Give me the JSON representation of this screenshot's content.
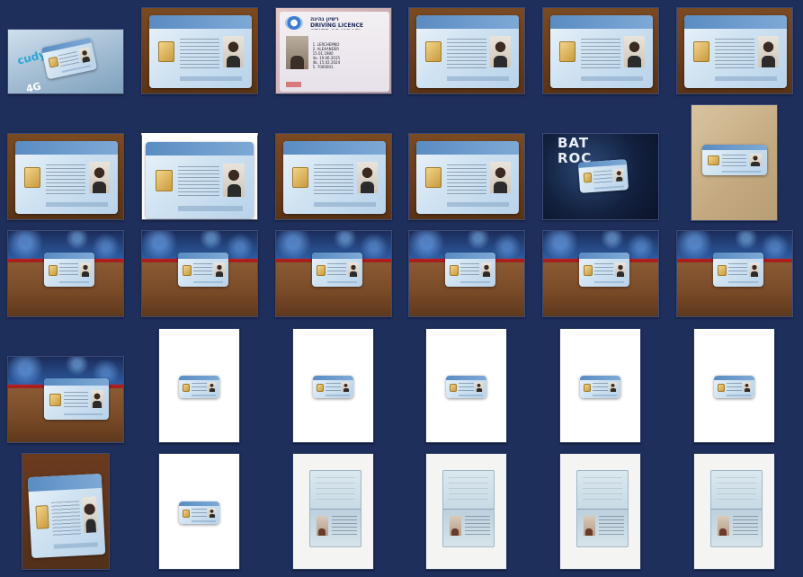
{
  "gallery": {
    "colors": {
      "background": "#1f2f5c",
      "border": "#3c4c78"
    },
    "driving_licence": {
      "title_hebrew": "רשיון נהיגה",
      "title_english": "DRIVING LICENCE",
      "state": "STATE OF ISRAEL",
      "state_hebrew": "מדינת ישראל",
      "label_surname": "1.",
      "surname": "LERCHEMKO",
      "label_given": "2.",
      "given_name": "ALEXANDER",
      "dob": "15.01.1980",
      "issue": "4a. 19.06.2015",
      "expiry": "4b. 15.02.2024",
      "number": "5. 7000001"
    },
    "box_brand": "cudy",
    "box_badge": "4G",
    "graffiti_text": "BAT ROC",
    "rows": [
      [
        {
          "scene": "box",
          "label": "cudy router box with ID card"
        },
        {
          "scene": "card-wood",
          "label": "Israeli ID card on wood"
        },
        {
          "scene": "dl",
          "label": "Israeli driving licence"
        },
        {
          "scene": "card-wood",
          "label": "Israeli ID card on wood"
        },
        {
          "scene": "card-wood",
          "label": "Israeli ID card on wood"
        },
        {
          "scene": "card-wood",
          "label": "Israeli ID card on wood"
        }
      ],
      [
        {
          "scene": "card-wood",
          "label": "Israeli ID card on wood"
        },
        {
          "scene": "card-white-crop",
          "label": "Israeli ID card cropped"
        },
        {
          "scene": "card-wood",
          "label": "Israeli ID card on wood"
        },
        {
          "scene": "card-wood",
          "label": "Israeli ID card on wood"
        },
        {
          "scene": "graffiti",
          "label": "ID card on graffiti background"
        },
        {
          "scene": "card-tan",
          "label": "ID card on tan background"
        }
      ],
      [
        {
          "scene": "rack",
          "label": "ID card on table"
        },
        {
          "scene": "rack",
          "label": "ID card on table"
        },
        {
          "scene": "rack",
          "label": "ID card on table"
        },
        {
          "scene": "rack",
          "label": "ID card on table"
        },
        {
          "scene": "rack",
          "label": "ID card on table"
        },
        {
          "scene": "rack",
          "label": "ID card on table"
        }
      ],
      [
        {
          "scene": "rack-big",
          "label": "ID card on table close-up"
        },
        {
          "scene": "white-card",
          "label": "ID card scan on white page"
        },
        {
          "scene": "white-card",
          "label": "ID card scan on white page"
        },
        {
          "scene": "white-card",
          "label": "ID card scan on white page"
        },
        {
          "scene": "white-card",
          "label": "ID card scan on white page"
        },
        {
          "scene": "white-card",
          "label": "ID card scan on white page"
        }
      ],
      [
        {
          "scene": "rotated-card",
          "label": "Rotated ID card on dark wood"
        },
        {
          "scene": "white-card",
          "label": "ID card scan on white page"
        },
        {
          "scene": "passport",
          "label": "Passport scan"
        },
        {
          "scene": "passport",
          "label": "Passport scan"
        },
        {
          "scene": "passport",
          "label": "Passport scan"
        },
        {
          "scene": "passport",
          "label": "Passport scan"
        }
      ]
    ]
  }
}
